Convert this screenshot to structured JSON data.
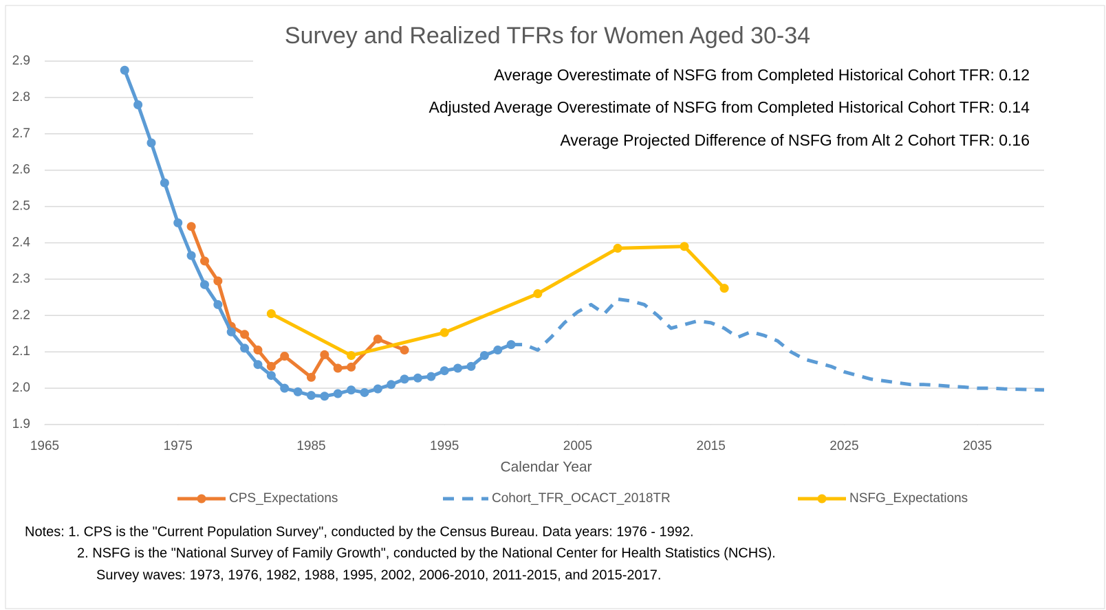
{
  "chart_data": {
    "type": "line",
    "title": "Survey and Realized TFRs for Women Aged 30-34",
    "annotations": [
      "Average Overestimate of NSFG from Completed Historical Cohort TFR: 0.12",
      "Adjusted Average Overestimate of NSFG from Completed Historical Cohort TFR: 0.14",
      "Average Projected Difference of NSFG from Alt 2 Cohort TFR: 0.16"
    ],
    "x_label": "Calendar Year",
    "xlim": [
      1965,
      2040
    ],
    "xticks": [
      1965,
      1975,
      1985,
      1995,
      2005,
      2015,
      2025,
      2035
    ],
    "ylim": [
      1.9,
      2.9
    ],
    "yticks": [
      1.9,
      {
        "value": 2,
        "label": "2.0"
      },
      2.1,
      2.2,
      2.3,
      2.4,
      2.5,
      2.6,
      2.7,
      2.8,
      2.9
    ],
    "grid": true,
    "legend": "bottom",
    "series": [
      {
        "name": "CPS_Expectations",
        "color": "#ed7d31",
        "style": "solid",
        "markers": true,
        "x": [
          1976,
          1977,
          1978,
          1979,
          1980,
          1981,
          1982,
          1983,
          1985,
          1986,
          1987,
          1988,
          1990,
          1992
        ],
        "values": [
          2.445,
          2.35,
          2.295,
          2.17,
          2.148,
          2.105,
          2.06,
          2.088,
          2.03,
          2.092,
          2.055,
          2.058,
          2.135,
          2.105
        ]
      },
      {
        "name": "Cohort_TFR_OCACT_2018TR",
        "color": "#5b9bd5",
        "style": "dashed",
        "markers": true,
        "solid_through": 2000,
        "x": [
          1971,
          1972,
          1973,
          1974,
          1975,
          1976,
          1977,
          1978,
          1979,
          1980,
          1981,
          1982,
          1983,
          1984,
          1985,
          1986,
          1987,
          1988,
          1989,
          1990,
          1991,
          1992,
          1993,
          1994,
          1995,
          1996,
          1997,
          1998,
          1999,
          2000,
          2001,
          2002,
          2003,
          2004,
          2005,
          2006,
          2007,
          2008,
          2009,
          2010,
          2011,
          2012,
          2013,
          2014,
          2015,
          2016,
          2017,
          2018,
          2019,
          2020,
          2021,
          2022,
          2023,
          2024,
          2025,
          2026,
          2027,
          2028,
          2029,
          2030,
          2031,
          2032,
          2033,
          2034,
          2035,
          2036,
          2037,
          2038,
          2039,
          2040
        ],
        "values": [
          2.875,
          2.78,
          2.675,
          2.565,
          2.455,
          2.365,
          2.285,
          2.23,
          2.155,
          2.11,
          2.065,
          2.035,
          2.0,
          1.99,
          1.98,
          1.978,
          1.985,
          1.995,
          1.988,
          1.998,
          2.01,
          2.025,
          2.028,
          2.032,
          2.048,
          2.055,
          2.06,
          2.09,
          2.105,
          2.12,
          2.12,
          2.105,
          2.14,
          2.18,
          2.21,
          2.23,
          2.205,
          2.245,
          2.24,
          2.23,
          2.2,
          2.165,
          2.175,
          2.185,
          2.18,
          2.165,
          2.14,
          2.155,
          2.145,
          2.13,
          2.1,
          2.08,
          2.07,
          2.06,
          2.045,
          2.035,
          2.025,
          2.02,
          2.015,
          2.01,
          2.01,
          2.008,
          2.005,
          2.003,
          2.0,
          2.0,
          1.998,
          1.997,
          1.996,
          1.995
        ]
      },
      {
        "name": "NSFG_Expectations",
        "color": "#ffc000",
        "style": "solid",
        "markers": true,
        "x": [
          1982,
          1988,
          1995,
          2002,
          2008,
          2013,
          2016
        ],
        "values": [
          2.205,
          2.09,
          2.153,
          2.26,
          2.385,
          2.39,
          2.275
        ]
      }
    ],
    "notes": [
      "Notes: 1.  CPS is the \"Current Population Survey\", conducted by the Census Bureau.   Data years: 1976 - 1992.",
      "2.  NSFG is the \"National Survey of Family Growth\", conducted by the National Center for Health Statistics (NCHS).",
      "Survey waves:  1973, 1976, 1982, 1988, 1995, 2002, 2006-2010, 2011-2015, and 2015-2017."
    ]
  }
}
